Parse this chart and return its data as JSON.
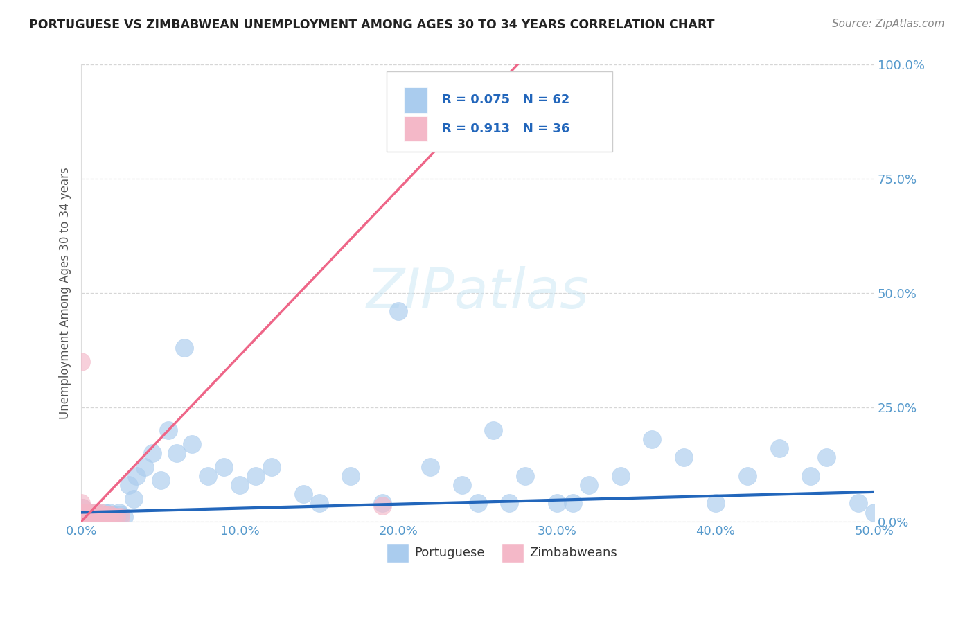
{
  "title": "PORTUGUESE VS ZIMBABWEAN UNEMPLOYMENT AMONG AGES 30 TO 34 YEARS CORRELATION CHART",
  "source": "Source: ZipAtlas.com",
  "ylabel": "Unemployment Among Ages 30 to 34 years",
  "xlim": [
    0.0,
    0.5
  ],
  "ylim": [
    0.0,
    1.0
  ],
  "xticks": [
    0.0,
    0.1,
    0.2,
    0.3,
    0.4,
    0.5
  ],
  "xticklabels": [
    "0.0%",
    "10.0%",
    "20.0%",
    "30.0%",
    "40.0%",
    "50.0%"
  ],
  "yticks": [
    0.0,
    0.25,
    0.5,
    0.75,
    1.0
  ],
  "yticklabels": [
    "0.0%",
    "25.0%",
    "50.0%",
    "75.0%",
    "100.0%"
  ],
  "portuguese_color": "#aaccee",
  "portuguese_edge_color": "#aaccee",
  "zimbabwean_color": "#f4b8c8",
  "zimbabwean_edge_color": "#f4b8c8",
  "portuguese_line_color": "#2266bb",
  "zimbabwean_line_color": "#ee6688",
  "legend_r_portuguese": "R = 0.075",
  "legend_n_portuguese": "N = 62",
  "legend_r_zimbabwean": "R = 0.913",
  "legend_n_zimbabwean": "N = 36",
  "watermark": "ZIPatlas",
  "background_color": "#ffffff",
  "grid_color": "#cccccc",
  "tick_color": "#5599cc",
  "label_color": "#555555",
  "portuguese_scatter_x": [
    0.001,
    0.002,
    0.003,
    0.004,
    0.005,
    0.006,
    0.007,
    0.008,
    0.009,
    0.01,
    0.011,
    0.012,
    0.013,
    0.015,
    0.016,
    0.017,
    0.018,
    0.019,
    0.02,
    0.022,
    0.024,
    0.025,
    0.027,
    0.03,
    0.033,
    0.035,
    0.04,
    0.045,
    0.05,
    0.055,
    0.06,
    0.065,
    0.07,
    0.08,
    0.09,
    0.1,
    0.11,
    0.12,
    0.14,
    0.15,
    0.17,
    0.19,
    0.2,
    0.22,
    0.24,
    0.25,
    0.27,
    0.28,
    0.3,
    0.32,
    0.34,
    0.36,
    0.38,
    0.4,
    0.42,
    0.44,
    0.46,
    0.47,
    0.49,
    0.5,
    0.26,
    0.31
  ],
  "portuguese_scatter_y": [
    0.03,
    0.02,
    0.01,
    0.02,
    0.01,
    0.015,
    0.01,
    0.02,
    0.01,
    0.02,
    0.01,
    0.015,
    0.01,
    0.02,
    0.01,
    0.015,
    0.02,
    0.01,
    0.015,
    0.01,
    0.02,
    0.015,
    0.01,
    0.08,
    0.05,
    0.1,
    0.12,
    0.15,
    0.09,
    0.2,
    0.15,
    0.38,
    0.17,
    0.1,
    0.12,
    0.08,
    0.1,
    0.12,
    0.06,
    0.04,
    0.1,
    0.04,
    0.46,
    0.12,
    0.08,
    0.04,
    0.04,
    0.1,
    0.04,
    0.08,
    0.1,
    0.18,
    0.14,
    0.04,
    0.1,
    0.16,
    0.1,
    0.14,
    0.04,
    0.02,
    0.2,
    0.04
  ],
  "zimbabwean_scatter_x": [
    0.0,
    0.001,
    0.002,
    0.003,
    0.004,
    0.005,
    0.006,
    0.007,
    0.008,
    0.009,
    0.01,
    0.011,
    0.012,
    0.013,
    0.015,
    0.016,
    0.018,
    0.02,
    0.022,
    0.025,
    0.001,
    0.002,
    0.003,
    0.004,
    0.005,
    0.006,
    0.007,
    0.008,
    0.009,
    0.01,
    0.0,
    0.001,
    0.002,
    0.003,
    0.19,
    0.0
  ],
  "zimbabwean_scatter_y": [
    0.02,
    0.01,
    0.02,
    0.01,
    0.015,
    0.02,
    0.01,
    0.015,
    0.01,
    0.015,
    0.02,
    0.01,
    0.02,
    0.01,
    0.015,
    0.01,
    0.015,
    0.01,
    0.01,
    0.01,
    0.01,
    0.02,
    0.01,
    0.01,
    0.01,
    0.01,
    0.02,
    0.01,
    0.01,
    0.01,
    0.04,
    0.03,
    0.02,
    0.01,
    0.035,
    0.35
  ],
  "zimb_line_x0": 0.0,
  "zimb_line_x1": 0.275,
  "zimb_line_y0": 0.0,
  "zimb_line_y1": 1.0,
  "port_line_x0": 0.0,
  "port_line_x1": 0.5,
  "port_line_y0": 0.02,
  "port_line_y1": 0.065
}
